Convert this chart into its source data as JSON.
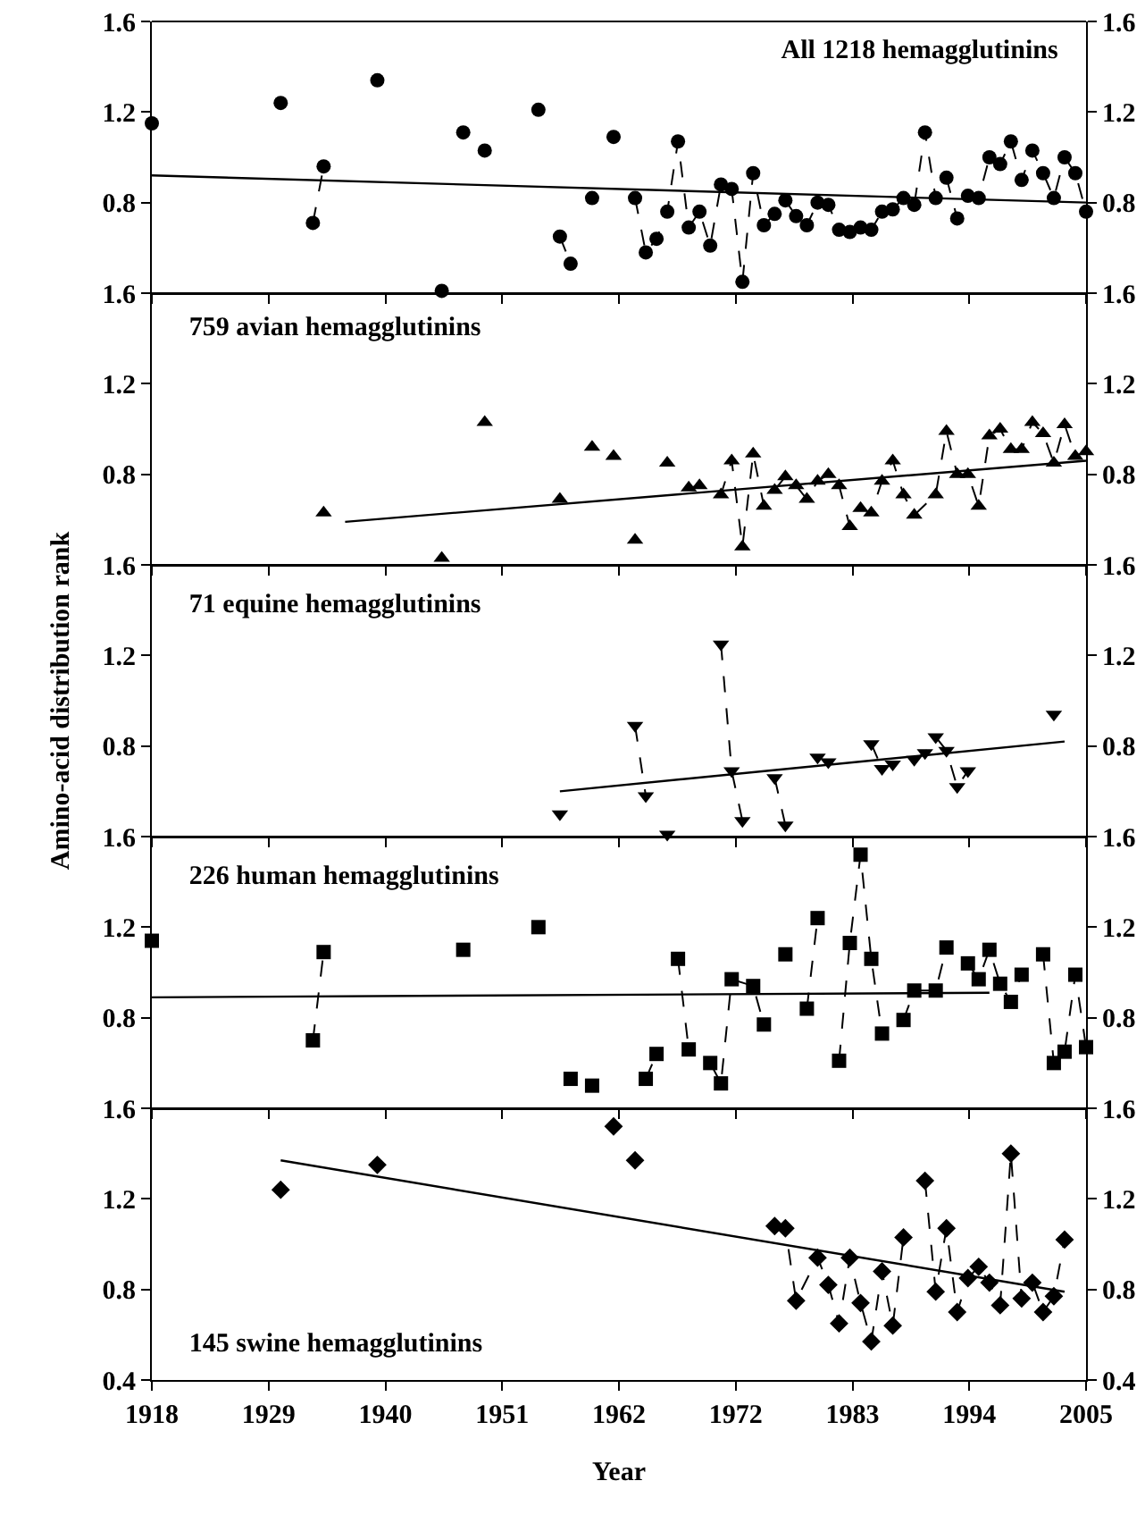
{
  "chart_data": [
    {
      "type": "line",
      "title": "All 1218 hemagglutinins",
      "xlim": [
        1918,
        2005
      ],
      "xticks": [
        {
          "value": 1918,
          "label": null
        },
        {
          "value": 1928.875,
          "label": null
        },
        {
          "value": 1939.75,
          "label": null
        },
        {
          "value": 1950.625,
          "label": null
        },
        {
          "value": 1961.5,
          "label": null
        },
        {
          "value": 1972.375,
          "label": null
        },
        {
          "value": 1983.25,
          "label": null
        },
        {
          "value": 1994.125,
          "label": null
        },
        {
          "value": 2005,
          "label": null
        }
      ],
      "ylim": [
        0.4,
        1.6
      ],
      "yticks": [
        0.8,
        1.2,
        1.6
      ],
      "y2lim": [
        0.4,
        1.6
      ],
      "y2ticks": [
        0.8,
        1.2,
        1.6
      ],
      "tick_labels": "y",
      "series": [
        {
          "color": "#000000",
          "marker": "circle",
          "line_style": "dashed",
          "x": [
            1918,
            1924,
            1930,
            1931.5,
            1933,
            1934,
            1936.5,
            1939,
            1942,
            1945,
            1946,
            1947,
            1948,
            1949,
            1951.5,
            1954,
            1955,
            1956,
            1957,
            1958,
            1959,
            1960,
            1961,
            1962,
            1963,
            1964,
            1965,
            1966,
            1967,
            1968,
            1969,
            1970,
            1971,
            1972,
            1973,
            1974,
            1975,
            1976,
            1977,
            1978,
            1979,
            1980,
            1981,
            1982,
            1983,
            1984,
            1985,
            1986,
            1987,
            1988,
            1989,
            1990,
            1991,
            1992,
            1993,
            1994,
            1995,
            1996,
            1997,
            1998,
            1999,
            2000,
            2001,
            2002,
            2003,
            2004,
            2005
          ],
          "values": [
            1.15,
            null,
            1.24,
            null,
            0.71,
            0.96,
            null,
            1.34,
            null,
            0.41,
            null,
            1.11,
            null,
            1.03,
            null,
            1.21,
            null,
            0.65,
            0.53,
            null,
            0.82,
            null,
            1.09,
            null,
            0.82,
            0.58,
            0.64,
            0.76,
            1.07,
            0.69,
            0.76,
            0.61,
            0.88,
            0.86,
            0.45,
            0.93,
            0.7,
            0.75,
            0.81,
            0.74,
            0.7,
            0.8,
            0.79,
            0.68,
            0.67,
            0.69,
            0.68,
            0.76,
            0.77,
            0.82,
            0.79,
            1.11,
            0.82,
            0.91,
            0.73,
            0.83,
            0.82,
            1.0,
            0.97,
            1.07,
            0.9,
            1.03,
            0.93,
            0.82,
            1.0,
            0.93,
            0.76
          ]
        },
        {
          "color": "#000000",
          "marker": "none",
          "line_style": "solid",
          "x": [
            1918,
            2005
          ],
          "values": [
            0.92,
            0.8
          ]
        }
      ]
    },
    {
      "type": "line",
      "title": "759 avian hemagglutinins",
      "xlim": [
        1918,
        2005
      ],
      "xticks": [
        {
          "value": 1918,
          "label": null
        },
        {
          "value": 1928.875,
          "label": null
        },
        {
          "value": 1939.75,
          "label": null
        },
        {
          "value": 1950.625,
          "label": null
        },
        {
          "value": 1961.5,
          "label": null
        },
        {
          "value": 1972.375,
          "label": null
        },
        {
          "value": 1983.25,
          "label": null
        },
        {
          "value": 1994.125,
          "label": null
        },
        {
          "value": 2005,
          "label": null
        }
      ],
      "ylim": [
        0.4,
        1.6
      ],
      "yticks": [
        0.8,
        1.2,
        1.6
      ],
      "y2lim": [
        0.4,
        1.6
      ],
      "y2ticks": [
        0.8,
        1.2,
        1.6
      ],
      "tick_labels": "y",
      "series": [
        {
          "color": "#000000",
          "marker": "triangle",
          "line_style": "dashed",
          "x": [
            1934,
            1939.5,
            1945,
            1947,
            1949,
            1952.5,
            1956,
            1957.5,
            1959,
            1960,
            1961,
            1962,
            1963,
            1964.5,
            1966,
            1967,
            1968,
            1969,
            1971,
            1972,
            1973,
            1974,
            1975,
            1976,
            1977,
            1978,
            1979,
            1980,
            1981,
            1982,
            1983,
            1984,
            1985,
            1986,
            1987,
            1988,
            1989,
            1991,
            1992,
            1993,
            1994,
            1995,
            1996,
            1997,
            1998,
            1999,
            2000,
            2001,
            2002,
            2003,
            2004,
            2005
          ],
          "values": [
            0.63,
            null,
            0.43,
            null,
            1.03,
            null,
            0.69,
            null,
            0.92,
            null,
            0.88,
            null,
            0.51,
            null,
            0.85,
            null,
            0.74,
            0.75,
            0.71,
            0.86,
            0.48,
            0.89,
            0.66,
            0.73,
            0.79,
            0.75,
            0.69,
            0.77,
            0.8,
            0.75,
            0.57,
            0.65,
            0.63,
            0.77,
            0.86,
            0.71,
            0.62,
            0.71,
            0.99,
            0.8,
            0.8,
            0.66,
            0.97,
            1.0,
            0.91,
            0.91,
            1.03,
            0.98,
            0.85,
            1.02,
            0.88,
            0.9
          ]
        },
        {
          "color": "#000000",
          "marker": "none",
          "line_style": "solid",
          "x": [
            1936,
            2005
          ],
          "values": [
            0.59,
            0.86
          ]
        }
      ]
    },
    {
      "type": "line",
      "title": "71 equine hemagglutinins",
      "ylabel": "Amino-acid distribution rank",
      "xlim": [
        1918,
        2005
      ],
      "xticks": [
        {
          "value": 1918,
          "label": null
        },
        {
          "value": 1928.875,
          "label": null
        },
        {
          "value": 1939.75,
          "label": null
        },
        {
          "value": 1950.625,
          "label": null
        },
        {
          "value": 1961.5,
          "label": null
        },
        {
          "value": 1972.375,
          "label": null
        },
        {
          "value": 1983.25,
          "label": null
        },
        {
          "value": 1994.125,
          "label": null
        },
        {
          "value": 2005,
          "label": null
        }
      ],
      "ylim": [
        0.4,
        1.6
      ],
      "yticks": [
        0.8,
        1.2,
        1.6
      ],
      "y2lim": [
        0.4,
        1.6
      ],
      "y2ticks": [
        0.8,
        1.2,
        1.6
      ],
      "tick_labels": "y",
      "series": [
        {
          "color": "#000000",
          "marker": "triangle-down",
          "line_style": "dashed",
          "x": [
            1956,
            1959.5,
            1963,
            1964,
            1965,
            1966,
            1968.5,
            1971,
            1972,
            1973,
            1974.5,
            1976,
            1977,
            1978.5,
            1980,
            1981,
            1983,
            1985,
            1986,
            1987,
            1988,
            1989,
            1990,
            1991,
            1992,
            1993,
            1994,
            1998,
            2002
          ],
          "values": [
            0.5,
            null,
            0.89,
            0.58,
            null,
            0.41,
            null,
            1.25,
            0.69,
            0.47,
            null,
            0.66,
            0.45,
            null,
            0.75,
            0.73,
            null,
            0.81,
            0.7,
            0.72,
            null,
            0.74,
            0.77,
            0.84,
            0.78,
            0.62,
            0.69,
            null,
            0.94
          ]
        },
        {
          "color": "#000000",
          "marker": "none",
          "line_style": "solid",
          "x": [
            1956,
            2003
          ],
          "values": [
            0.6,
            0.82
          ]
        }
      ]
    },
    {
      "type": "line",
      "title": "226 human hemagglutinins",
      "xlim": [
        1918,
        2005
      ],
      "xticks": [
        {
          "value": 1918,
          "label": null
        },
        {
          "value": 1928.875,
          "label": null
        },
        {
          "value": 1939.75,
          "label": null
        },
        {
          "value": 1950.625,
          "label": null
        },
        {
          "value": 1961.5,
          "label": null
        },
        {
          "value": 1972.375,
          "label": null
        },
        {
          "value": 1983.25,
          "label": null
        },
        {
          "value": 1994.125,
          "label": null
        },
        {
          "value": 2005,
          "label": null
        }
      ],
      "ylim": [
        0.4,
        1.6
      ],
      "yticks": [
        0.8,
        1.2,
        1.6
      ],
      "y2lim": [
        0.4,
        1.6
      ],
      "y2ticks": [
        0.8,
        1.2,
        1.6
      ],
      "tick_labels": "y",
      "series": [
        {
          "color": "#000000",
          "marker": "square",
          "line_style": "dashed",
          "x": [
            1918,
            1925.5,
            1933,
            1934,
            1940.5,
            1947,
            1950.5,
            1954,
            1955.5,
            1957,
            1958,
            1959,
            1961.5,
            1964,
            1965,
            1966,
            1967,
            1968,
            1969,
            1970,
            1971,
            1972,
            1974,
            1975,
            1976,
            1977,
            1978,
            1979,
            1980,
            1981,
            1982,
            1983,
            1984,
            1985,
            1986,
            1987,
            1988,
            1989,
            1991,
            1992,
            1993,
            1994,
            1995,
            1996,
            1997,
            1998,
            1999,
            2000,
            2001,
            2002,
            2003,
            2004,
            2005
          ],
          "values": [
            1.14,
            null,
            0.7,
            1.09,
            null,
            1.1,
            null,
            1.2,
            null,
            0.53,
            null,
            0.5,
            null,
            0.53,
            0.64,
            null,
            1.06,
            0.66,
            null,
            0.6,
            0.51,
            0.97,
            0.94,
            0.77,
            null,
            1.08,
            null,
            0.84,
            1.24,
            null,
            0.61,
            1.13,
            1.52,
            1.06,
            0.73,
            null,
            0.79,
            0.92,
            0.92,
            1.11,
            null,
            1.04,
            0.97,
            1.1,
            0.95,
            0.87,
            0.99,
            null,
            1.08,
            0.6,
            0.65,
            0.99,
            0.67
          ]
        },
        {
          "color": "#000000",
          "marker": "none",
          "line_style": "solid",
          "x": [
            1918,
            1996
          ],
          "values": [
            0.89,
            0.91
          ]
        }
      ]
    },
    {
      "type": "line",
      "title": "145 swine hemagglutinins",
      "xlabel": "Year",
      "xlim": [
        1918,
        2005
      ],
      "xticks": [
        1918,
        {
          "value": 1928.875,
          "label": "1929"
        },
        {
          "value": 1939.75,
          "label": "1940"
        },
        {
          "value": 1950.625,
          "label": "1951"
        },
        {
          "value": 1961.5,
          "label": "1962"
        },
        {
          "value": 1972.375,
          "label": "1972"
        },
        {
          "value": 1983.25,
          "label": "1983"
        },
        {
          "value": 1994.125,
          "label": "1994"
        },
        2005
      ],
      "ylim": [
        0.4,
        1.6
      ],
      "yticks": [
        0.4,
        0.8,
        1.2,
        1.6
      ],
      "y2lim": [
        0.4,
        1.6
      ],
      "y2ticks": [
        0.4,
        0.8,
        1.2,
        1.6
      ],
      "series": [
        {
          "color": "#000000",
          "marker": "diamond",
          "line_style": "dashed",
          "x": [
            1930,
            1934.5,
            1939,
            1950,
            1961,
            1962,
            1963,
            1969.5,
            1976,
            1977,
            1978,
            1980,
            1981,
            1982,
            1983,
            1984,
            1985,
            1986,
            1987,
            1988,
            1989,
            1990,
            1991,
            1992,
            1993,
            1994,
            1995,
            1996,
            1997,
            1998,
            1999,
            2000,
            2001,
            2002,
            2003
          ],
          "values": [
            1.24,
            null,
            1.35,
            null,
            1.52,
            null,
            1.37,
            null,
            1.08,
            1.07,
            0.75,
            0.94,
            0.82,
            0.65,
            0.94,
            0.74,
            0.57,
            0.88,
            0.64,
            1.03,
            null,
            1.28,
            0.79,
            1.07,
            0.7,
            0.85,
            0.9,
            0.83,
            0.73,
            1.4,
            0.76,
            0.83,
            0.7,
            0.77,
            1.02
          ]
        },
        {
          "color": "#000000",
          "marker": "none",
          "line_style": "solid",
          "x": [
            1930,
            2003
          ],
          "values": [
            1.37,
            0.79
          ]
        }
      ]
    }
  ]
}
